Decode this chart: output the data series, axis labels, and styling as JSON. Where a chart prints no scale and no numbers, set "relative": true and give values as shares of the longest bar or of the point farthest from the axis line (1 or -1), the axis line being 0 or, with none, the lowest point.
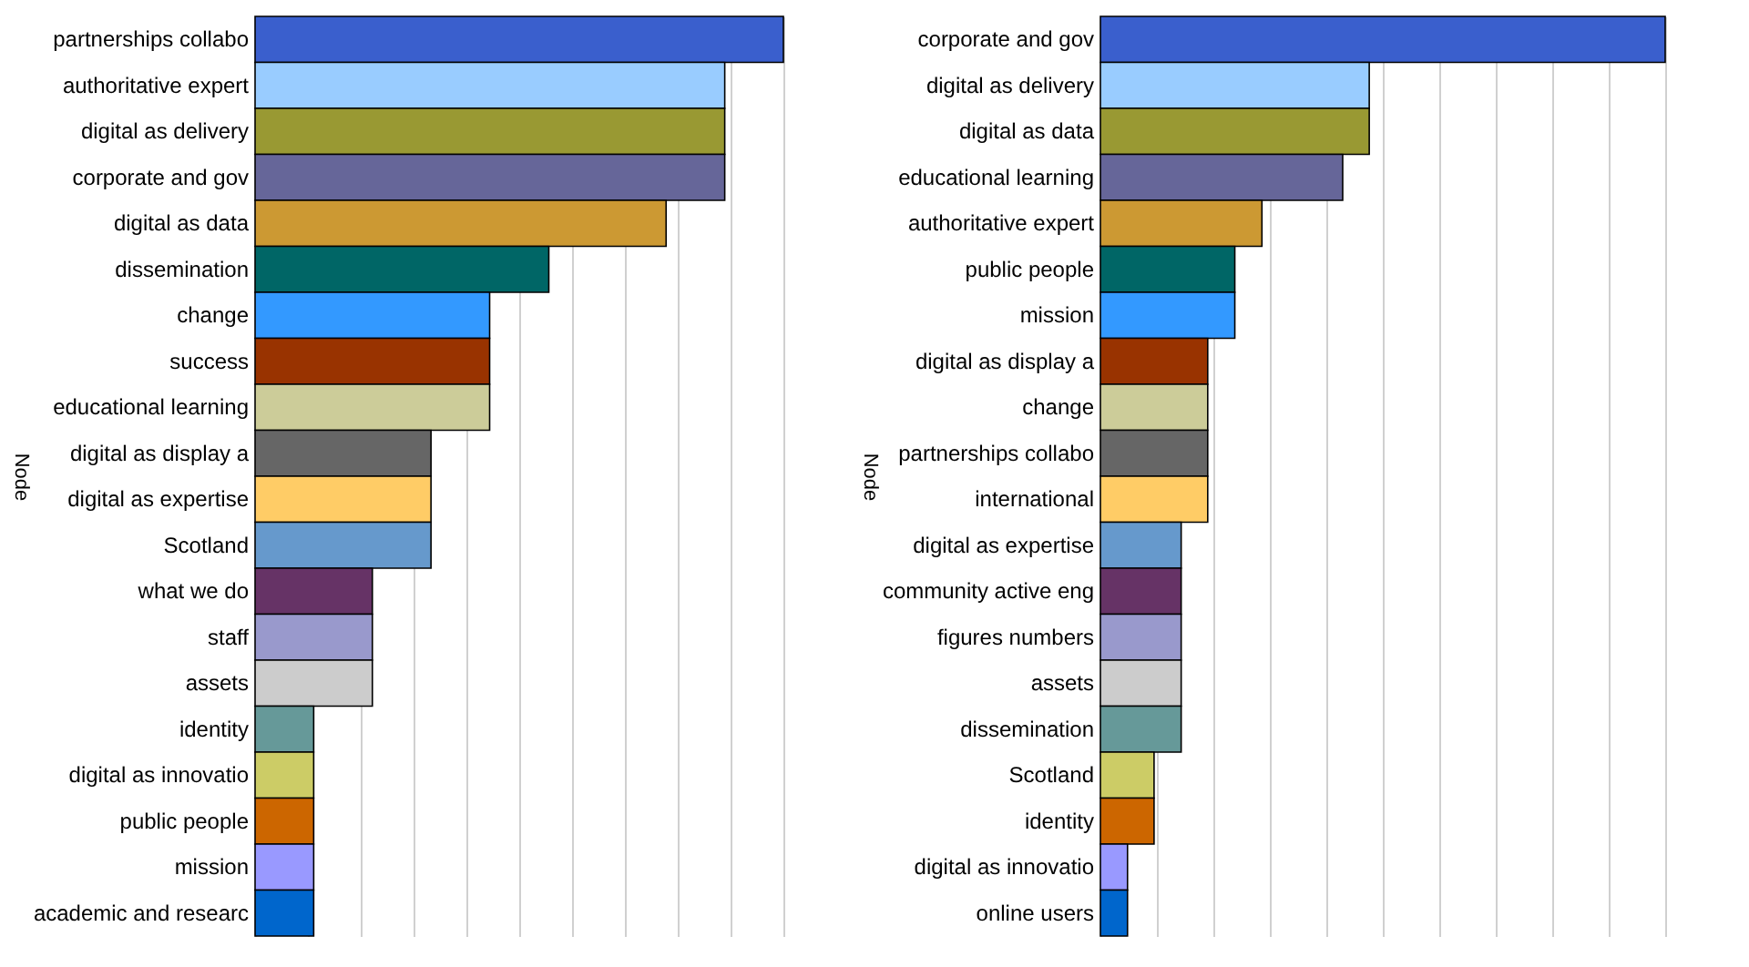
{
  "chart_data": [
    {
      "type": "bar",
      "orientation": "horizontal",
      "relative": true,
      "ylabel": "Node",
      "grid": "x",
      "categories": [
        "partnerships collabo",
        "authoritative expert",
        "digital as delivery",
        "corporate and gov",
        "digital as data",
        "dissemination",
        "change",
        "success",
        "educational learning",
        "digital as display a",
        "digital as expertise",
        "Scotland",
        "what we do",
        "staff",
        "assets",
        "identity",
        "digital as innovatio",
        "public people",
        "mission",
        "academic and researc"
      ],
      "values": [
        1,
        0.889,
        0.889,
        0.889,
        0.778,
        0.556,
        0.444,
        0.444,
        0.444,
        0.333,
        0.333,
        0.333,
        0.222,
        0.222,
        0.222,
        0.111,
        0.111,
        0.111,
        0.111,
        0.111
      ],
      "colors": [
        "#3a5fcd",
        "#99ccff",
        "#999933",
        "#666699",
        "#cc9933",
        "#006666",
        "#3399ff",
        "#993300",
        "#cccc99",
        "#666666",
        "#ffcc66",
        "#6699cc",
        "#663366",
        "#9999cc",
        "#cccccc",
        "#669999",
        "#cccc66",
        "#cc6600",
        "#9999ff",
        "#0066cc"
      ]
    },
    {
      "type": "bar",
      "orientation": "horizontal",
      "relative": true,
      "ylabel": "Node",
      "grid": "x",
      "categories": [
        "corporate and gov",
        "digital as delivery",
        "digital as data",
        "educational learning",
        "authoritative expert",
        "public people",
        "mission",
        "digital as display a",
        "change",
        "partnerships collabo",
        "international",
        "digital as expertise",
        "community active eng",
        "figures numbers",
        "assets",
        "dissemination",
        "Scotland",
        "identity",
        "digital as innovatio",
        "online users"
      ],
      "values": [
        1,
        0.476,
        0.476,
        0.429,
        0.286,
        0.238,
        0.238,
        0.19,
        0.19,
        0.19,
        0.19,
        0.143,
        0.143,
        0.143,
        0.143,
        0.143,
        0.095,
        0.095,
        0.048,
        0.048
      ],
      "colors": [
        "#3a5fcd",
        "#99ccff",
        "#999933",
        "#666699",
        "#cc9933",
        "#006666",
        "#3399ff",
        "#993300",
        "#cccc99",
        "#666666",
        "#ffcc66",
        "#6699cc",
        "#663366",
        "#9999cc",
        "#cccccc",
        "#669999",
        "#cccc66",
        "#cc6600",
        "#9999ff",
        "#0066cc"
      ]
    }
  ]
}
